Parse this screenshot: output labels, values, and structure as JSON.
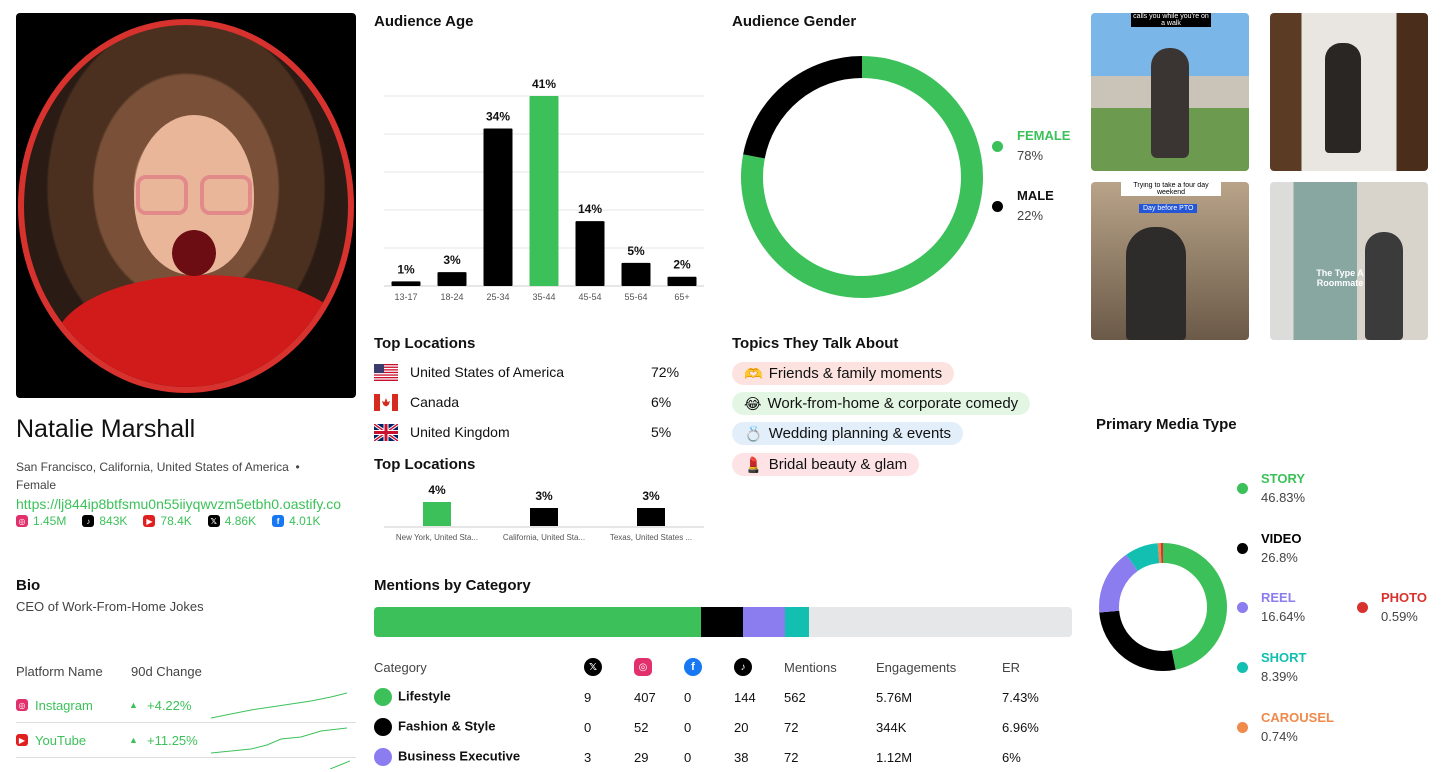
{
  "profile": {
    "name": "Natalie Marshall",
    "location": "San Francisco, California, United States of America",
    "separator": "•",
    "gender": "Female",
    "link": "https://lj844ip8btfsmu0n55iiyqwvzm5etbh0.oastify.co",
    "socials": [
      {
        "icon": "instagram-icon",
        "value": "1.45M",
        "color": "#e1306c"
      },
      {
        "icon": "tiktok-icon",
        "value": "843K",
        "color": "#000000"
      },
      {
        "icon": "youtube-icon",
        "value": "78.4K",
        "color": "#e02020"
      },
      {
        "icon": "x-icon",
        "value": "4.86K",
        "color": "#000000"
      },
      {
        "icon": "facebook-icon",
        "value": "4.01K",
        "color": "#1877f2"
      }
    ]
  },
  "bio": {
    "title": "Bio",
    "text": "CEO of Work-From-Home Jokes"
  },
  "platforms": {
    "header_name": "Platform Name",
    "header_change": "90d Change",
    "rows": [
      {
        "name": "Instagram",
        "change": "+4.22%",
        "icon": "instagram-icon"
      },
      {
        "name": "YouTube",
        "change": "+11.25%",
        "icon": "youtube-icon"
      }
    ]
  },
  "age": {
    "title": "Audience Age",
    "chart_data": {
      "type": "bar",
      "categories": [
        "13-17",
        "18-24",
        "25-34",
        "35-44",
        "45-54",
        "55-64",
        "65+"
      ],
      "values": [
        1,
        3,
        34,
        41,
        14,
        5,
        2
      ],
      "labels": [
        "1%",
        "3%",
        "34%",
        "41%",
        "14%",
        "5%",
        "2%"
      ],
      "highlight_index": 3,
      "ylim": [
        0,
        41
      ]
    }
  },
  "gender": {
    "title": "Audience Gender",
    "chart_data": {
      "type": "pie",
      "series": [
        {
          "name": "FEMALE",
          "value": 78,
          "label": "78%",
          "color": "#3cc15a"
        },
        {
          "name": "MALE",
          "value": 22,
          "label": "22%",
          "color": "#000000"
        }
      ]
    }
  },
  "locations": {
    "title": "Top Locations",
    "rows": [
      {
        "country": "United States of America",
        "pct": "72%",
        "flag": "us-flag-icon"
      },
      {
        "country": "Canada",
        "pct": "6%",
        "flag": "canada-flag-icon"
      },
      {
        "country": "United Kingdom",
        "pct": "5%",
        "flag": "uk-flag-icon"
      }
    ]
  },
  "cities": {
    "title": "Top Locations",
    "chart_data": {
      "type": "bar",
      "categories": [
        "New York, United Sta...",
        "California, United Sta...",
        "Texas, United States ..."
      ],
      "values": [
        4,
        3,
        3
      ],
      "labels": [
        "4%",
        "3%",
        "3%"
      ],
      "highlight_index": 0,
      "ylim": [
        0,
        4
      ]
    }
  },
  "topics": {
    "title": "Topics They Talk About",
    "chips": [
      {
        "emoji": "🫶",
        "label": "Friends & family moments",
        "bg": "#fde3df"
      },
      {
        "emoji": "😂",
        "label": "Work-from-home & corporate comedy",
        "bg": "#e3f6e4"
      },
      {
        "emoji": "💍",
        "label": "Wedding planning & events",
        "bg": "#e2eef9"
      },
      {
        "emoji": "💄",
        "label": "Bridal beauty & glam",
        "bg": "#fde3e6"
      }
    ]
  },
  "thumbnails": [
    {
      "caption": "calls you while you're on a walk"
    },
    {
      "caption": ""
    },
    {
      "caption": "Trying to take a four day weekend",
      "tag": "Day before PTO"
    },
    {
      "caption": "The Type A Roommate"
    }
  ],
  "mentions": {
    "title": "Mentions by Category",
    "bar": [
      {
        "value": 562,
        "color": "#3cc15a"
      },
      {
        "value": 72,
        "color": "#000000"
      },
      {
        "value": 72,
        "color": "#8b7cf0"
      },
      {
        "value": 42,
        "color": "#12bfb0"
      }
    ],
    "bar_total": 1200,
    "headers": {
      "category": "Category",
      "x": "x-icon",
      "ig": "instagram-icon",
      "fb": "facebook-icon",
      "tt": "tiktok-icon",
      "mentions": "Mentions",
      "engagements": "Engagements",
      "er": "ER"
    },
    "rows": [
      {
        "name": "Lifestyle",
        "color": "#3cc15a",
        "x": "9",
        "ig": "407",
        "fb": "0",
        "tt": "144",
        "mentions": "562",
        "eng": "5.76M",
        "er": "7.43%"
      },
      {
        "name": "Fashion & Style",
        "color": "#000000",
        "x": "0",
        "ig": "52",
        "fb": "0",
        "tt": "20",
        "mentions": "72",
        "eng": "344K",
        "er": "6.96%"
      },
      {
        "name": "Business Executive",
        "color": "#8b7cf0",
        "x": "3",
        "ig": "29",
        "fb": "0",
        "tt": "38",
        "mentions": "72",
        "eng": "1.12M",
        "er": "6%"
      }
    ]
  },
  "media": {
    "title": "Primary Media Type",
    "chart_data": {
      "type": "pie",
      "series": [
        {
          "name": "STORY",
          "value": 46.83,
          "label": "46.83%",
          "color": "#3cc15a"
        },
        {
          "name": "VIDEO",
          "value": 26.8,
          "label": "26.8%",
          "color": "#000000"
        },
        {
          "name": "REEL",
          "value": 16.64,
          "label": "16.64%",
          "color": "#8b7cf0"
        },
        {
          "name": "SHORT",
          "value": 8.39,
          "label": "8.39%",
          "color": "#12bfb0"
        },
        {
          "name": "CAROUSEL",
          "value": 0.74,
          "label": "0.74%",
          "color": "#f08a4b"
        },
        {
          "name": "PHOTO",
          "value": 0.59,
          "label": "0.59%",
          "color": "#d8322e"
        }
      ]
    }
  }
}
